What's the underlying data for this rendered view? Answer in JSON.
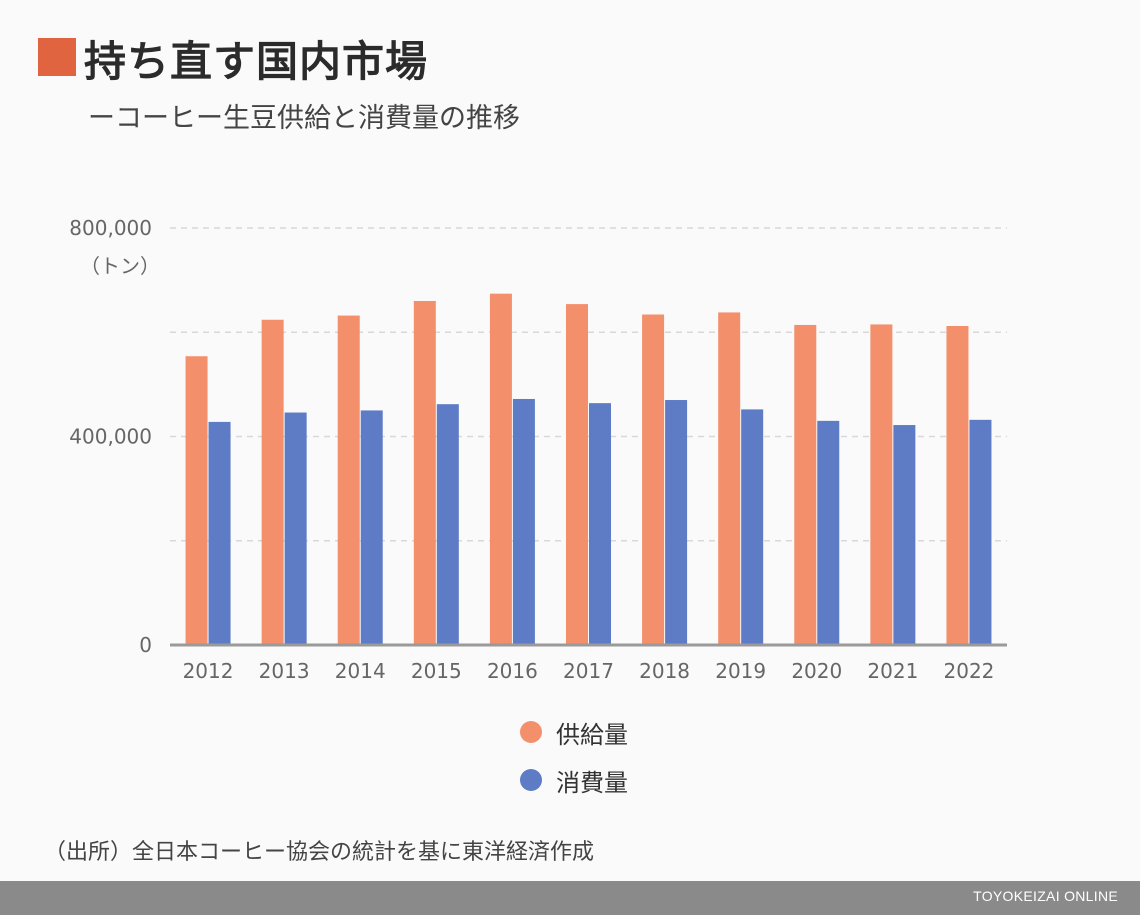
{
  "title": "持ち直す国内市場",
  "subtitle": "ーコーヒー生豆供給と消費量の推移",
  "unit_label": "（トン）",
  "source": "（出所）全日本コーヒー協会の統計を基に東洋経済作成",
  "footer_brand": "TOYOKEIZAI ONLINE",
  "colors": {
    "accent": "#e0643f",
    "supply": "#f48f6c",
    "consumption": "#5e7cc6",
    "grid": "#d8d8d8",
    "axis": "#9a9a9a"
  },
  "legend": [
    {
      "label": "供給量",
      "color": "#f48f6c"
    },
    {
      "label": "消費量",
      "color": "#5e7cc6"
    }
  ],
  "chart_data": {
    "type": "bar",
    "title": "持ち直す国内市場",
    "subtitle": "ーコーヒー生豆供給と消費量の推移",
    "ylabel": "（トン）",
    "ylim": [
      0,
      800000
    ],
    "yticks": [
      0,
      400000,
      800000
    ],
    "ytick_labels": [
      "0",
      "400,000",
      "800,000"
    ],
    "grid": true,
    "categories": [
      "2012",
      "2013",
      "2014",
      "2015",
      "2016",
      "2017",
      "2018",
      "2019",
      "2020",
      "2021",
      "2022"
    ],
    "series": [
      {
        "name": "供給量",
        "color": "#f48f6c",
        "values": [
          554000,
          624000,
          632000,
          660000,
          674000,
          654000,
          634000,
          638000,
          614000,
          615000,
          612000
        ]
      },
      {
        "name": "消費量",
        "color": "#5e7cc6",
        "values": [
          428000,
          446000,
          450000,
          462000,
          472000,
          464000,
          470000,
          452000,
          430000,
          422000,
          432000
        ]
      }
    ],
    "legend_position": "bottom"
  }
}
